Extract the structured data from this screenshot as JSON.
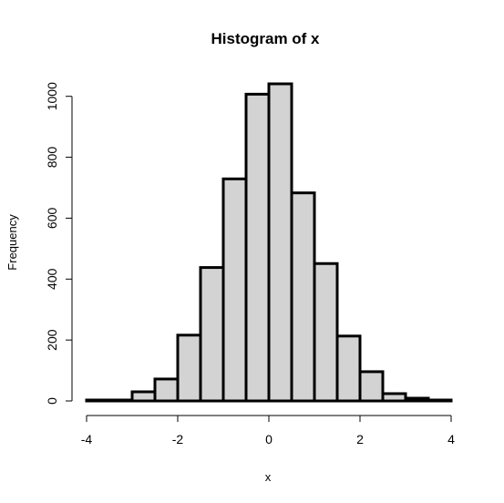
{
  "chart_data": {
    "type": "bar",
    "title": "Histogram of x",
    "xlabel": "x",
    "ylabel": "Frequency",
    "bin_edges": [
      -4,
      -3.5,
      -3,
      -2.5,
      -2,
      -1.5,
      -1,
      -0.5,
      0,
      0.5,
      1,
      1.5,
      2,
      2.5,
      3,
      3.5,
      4
    ],
    "values": [
      3,
      3,
      30,
      72,
      216,
      438,
      729,
      1007,
      1041,
      683,
      451,
      213,
      96,
      24,
      9,
      3
    ],
    "xlim": [
      -4,
      4
    ],
    "ylim": [
      0,
      1041
    ],
    "xticks": [
      -4,
      -2,
      0,
      2,
      4
    ],
    "yticks": [
      0,
      200,
      400,
      600,
      800,
      1000
    ],
    "bar_fill": "#d3d3d3",
    "bar_stroke": "#000000",
    "grid": false,
    "legend": "none"
  }
}
